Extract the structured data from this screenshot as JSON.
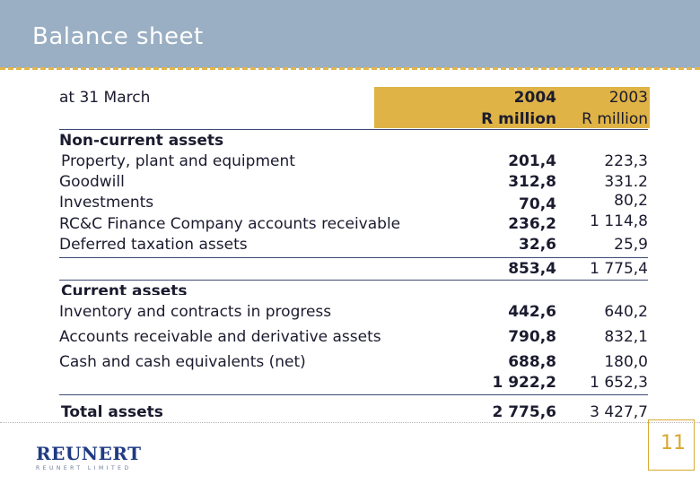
{
  "header": {
    "title": "Balance sheet"
  },
  "table": {
    "date_label": "at 31 March",
    "col_a": {
      "year": "2004",
      "unit": "R million"
    },
    "col_b": {
      "year": "2003",
      "unit": "R million"
    },
    "noncurrent": {
      "heading": "Non-current assets",
      "rows": [
        {
          "label": "Property, plant and equipment",
          "a": "201,4",
          "b": "223,3"
        },
        {
          "label": "Goodwill",
          "a": "312,8",
          "b": "331.2"
        },
        {
          "label": "Investments",
          "a": "70,4",
          "b": "80,2"
        },
        {
          "label": "RC&C Finance Company accounts receivable",
          "a": "236,2",
          "b": "1 114,8"
        },
        {
          "label": "Deferred taxation assets",
          "a": "32,6",
          "b": "25,9"
        }
      ],
      "total": {
        "a": "853,4",
        "b": "1 775,4"
      }
    },
    "current": {
      "heading": "Current assets",
      "rows": [
        {
          "label": "Inventory and contracts in progress",
          "a": "442,6",
          "b": "640,2"
        },
        {
          "label": "Accounts receivable and derivative assets",
          "a": "790,8",
          "b": "832,1"
        },
        {
          "label": "Cash and cash equivalents  (net)",
          "a": "688,8",
          "b": "180,0"
        }
      ],
      "total": {
        "a": "1 922,2",
        "b": "1 652,3"
      }
    },
    "total_assets": {
      "label": "Total assets",
      "a": "2 775,6",
      "b": "3 427,7"
    }
  },
  "footer": {
    "logo": "REUNERT",
    "logo_sub": "REUNERT LIMITED",
    "page_number": "11"
  },
  "colors": {
    "header": "#9aafc3",
    "gold": "#dfb345",
    "navy": "#1f3a82"
  }
}
